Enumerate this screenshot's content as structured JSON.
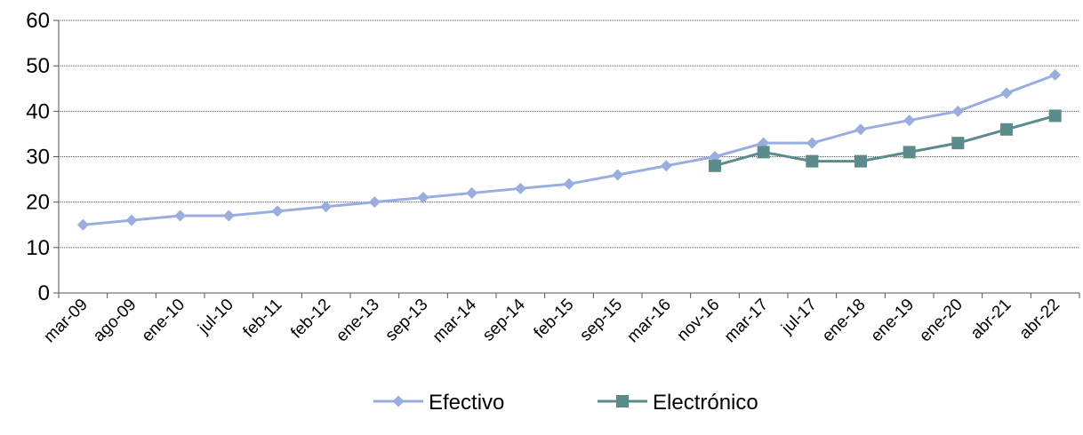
{
  "chart_data": {
    "type": "line",
    "x": [
      "mar-09",
      "ago-09",
      "ene-10",
      "jul-10",
      "feb-11",
      "feb-12",
      "ene-13",
      "sep-13",
      "mar-14",
      "sep-14",
      "feb-15",
      "sep-15",
      "mar-16",
      "nov-16",
      "mar-17",
      "jul-17",
      "ene-18",
      "ene-19",
      "ene-20",
      "abr-21",
      "abr-22"
    ],
    "series": [
      {
        "name": "Efectivo",
        "color": "#99aedf",
        "marker": "diamond",
        "values": [
          15,
          16,
          17,
          17,
          18,
          19,
          20,
          21,
          22,
          23,
          24,
          26,
          28,
          30,
          33,
          33,
          36,
          38,
          40,
          44,
          48
        ]
      },
      {
        "name": "Electrónico",
        "color": "#5b8c8c",
        "marker": "square",
        "values": [
          null,
          null,
          null,
          null,
          null,
          null,
          null,
          null,
          null,
          null,
          null,
          null,
          null,
          28,
          31,
          29,
          29,
          31,
          33,
          36,
          39
        ]
      }
    ],
    "ylim": [
      0,
      60
    ],
    "yticks": [
      0,
      10,
      20,
      30,
      40,
      50,
      60
    ],
    "title": "",
    "xlabel": "",
    "ylabel": "",
    "grid": "horizontal dotted",
    "legend_position": "bottom-center"
  }
}
